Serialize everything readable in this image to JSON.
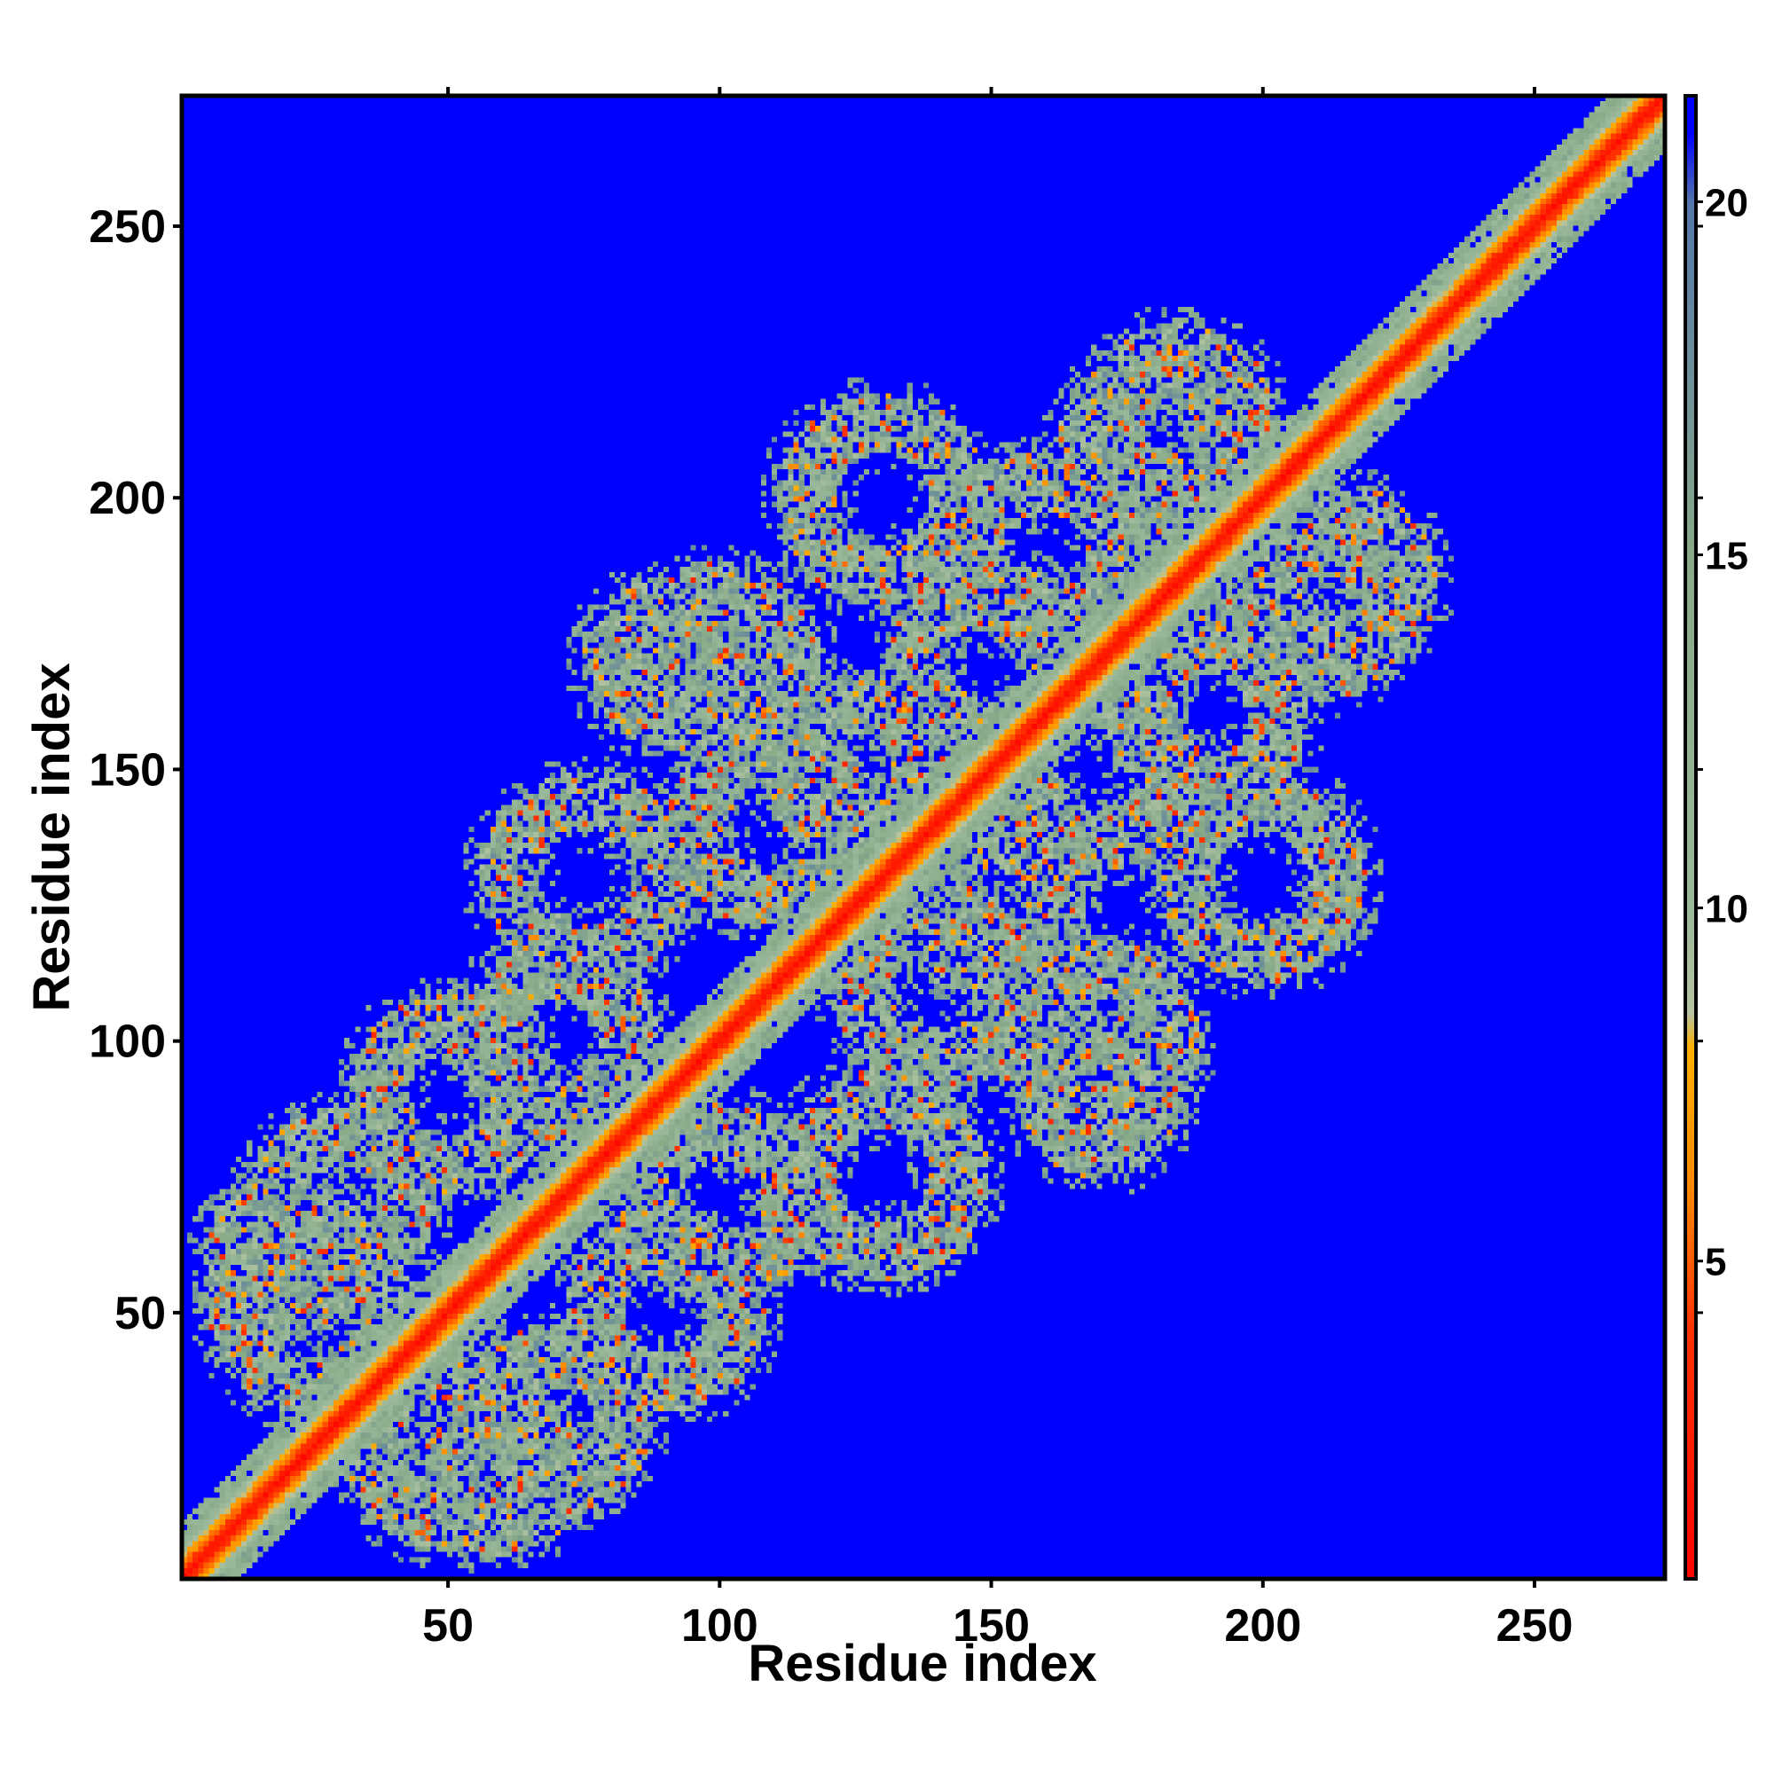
{
  "chart_data": {
    "type": "heatmap",
    "title": "",
    "xlabel": "Residue index",
    "ylabel": "Residue index",
    "xlim": [
      1,
      274
    ],
    "ylim": [
      1,
      274
    ],
    "x_ticks": [
      50,
      100,
      150,
      200,
      250
    ],
    "y_ticks": [
      50,
      100,
      150,
      200,
      250
    ],
    "n_residues": 274,
    "colorbar": {
      "ticks": [
        5,
        10,
        15,
        20
      ],
      "range": [
        0.5,
        21.5
      ],
      "colors": {
        "0": "#ff0000",
        "4": "#ff3300",
        "6": "#ff8800",
        "8": "#ffb000",
        "8.5": "#b8c4a0",
        "10": "#9ab89a",
        "15": "#88aa88",
        "20": "#5577aa",
        "21": "#0000ff"
      },
      "background_color": "#0000ff"
    },
    "diagonal_band_halfwidth": 6,
    "contact_motifs": [
      {
        "center": [
          50,
          25
        ],
        "radius": 14
      },
      {
        "center": [
          90,
          50
        ],
        "radius": 13
      },
      {
        "center": [
          130,
          75
        ],
        "radius": 14
      },
      {
        "center": [
          170,
          100
        ],
        "radius": 13
      },
      {
        "center": [
          150,
          125
        ],
        "radius": 12
      },
      {
        "center": [
          200,
          130
        ],
        "radius": 14
      },
      {
        "center": [
          190,
          160
        ],
        "radius": 13
      },
      {
        "center": [
          215,
          185
        ],
        "radius": 12
      },
      {
        "center": [
          30,
          70
        ],
        "radius": 12
      },
      {
        "center": [
          70,
          100
        ],
        "radius": 13
      },
      {
        "center": [
          110,
          140
        ],
        "radius": 14
      },
      {
        "center": [
          150,
          170
        ],
        "radius": 13
      },
      {
        "center": [
          180,
          210
        ],
        "radius": 12
      },
      {
        "center": [
          90,
          170
        ],
        "radius": 10
      },
      {
        "center": [
          20,
          60
        ],
        "radius": 10
      }
    ]
  }
}
